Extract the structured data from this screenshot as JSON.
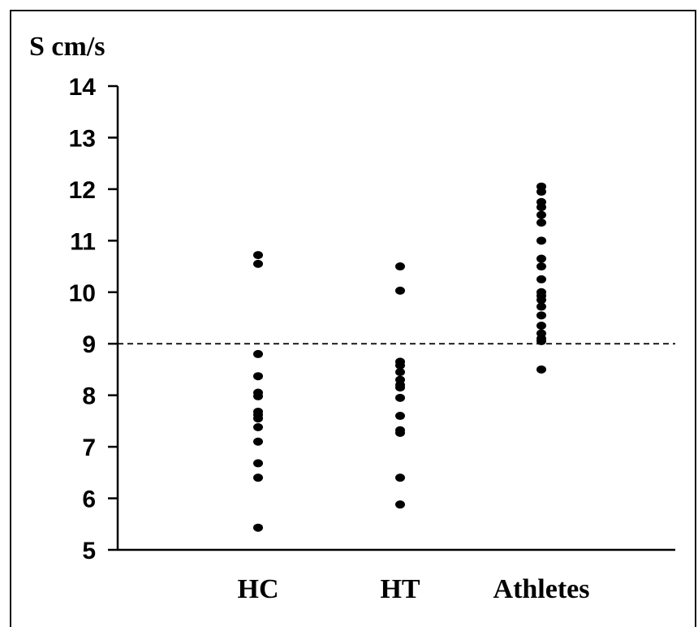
{
  "chart_data": {
    "type": "scatter",
    "ylabel": "S cm/s",
    "ylim": [
      5,
      14
    ],
    "yticks": [
      "5",
      "6",
      "7",
      "8",
      "9",
      "10",
      "11",
      "12",
      "13",
      "14"
    ],
    "categories": [
      "HC",
      "HT",
      "Athletes"
    ],
    "reference_line": {
      "y": 9,
      "style": "dashed"
    },
    "series": [
      {
        "category": "HC",
        "values": [
          10.72,
          10.55,
          8.8,
          8.37,
          8.05,
          7.98,
          7.68,
          7.62,
          7.55,
          7.38,
          7.1,
          6.68,
          6.4,
          5.43
        ]
      },
      {
        "category": "HT",
        "values": [
          10.5,
          10.03,
          8.65,
          8.58,
          8.45,
          8.3,
          8.2,
          8.15,
          7.95,
          7.6,
          7.32,
          7.27,
          6.4,
          5.88
        ]
      },
      {
        "category": "Athletes",
        "values": [
          12.05,
          11.95,
          11.75,
          11.65,
          11.5,
          11.35,
          11.0,
          10.65,
          10.5,
          10.25,
          10.0,
          9.93,
          9.85,
          9.72,
          9.55,
          9.35,
          9.2,
          9.1,
          9.05,
          8.5
        ]
      }
    ],
    "colors": {
      "points": "#000000",
      "axes": "#000000"
    }
  }
}
